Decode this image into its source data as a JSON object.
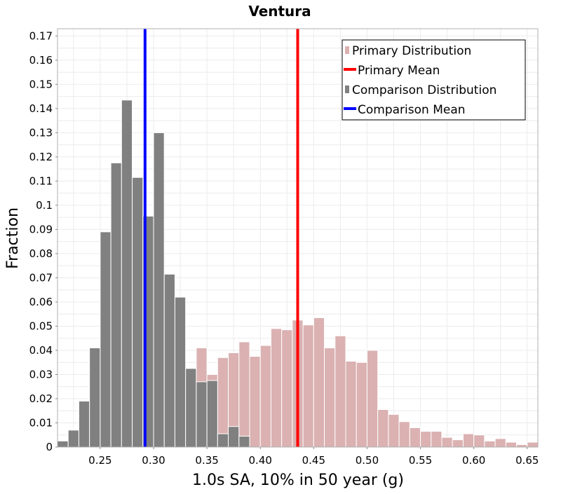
{
  "chart_data": {
    "type": "bar",
    "title": "Ventura",
    "xlabel": "1.0s SA, 10% in 50 year (g)",
    "ylabel": "Fraction",
    "xlim": [
      0.21,
      0.66
    ],
    "ylim": [
      0,
      0.173
    ],
    "bin_width": 0.01,
    "grid": true,
    "legend_position": "top-right",
    "x_ticks": [
      "0.25",
      "0.30",
      "0.35",
      "0.40",
      "0.45",
      "0.50",
      "0.55",
      "0.60",
      "0.65"
    ],
    "x_tick_values": [
      0.25,
      0.3,
      0.35,
      0.4,
      0.45,
      0.5,
      0.55,
      0.6,
      0.65
    ],
    "y_ticks": [
      "0",
      "0.01",
      "0.02",
      "0.03",
      "0.04",
      "0.05",
      "0.06",
      "0.07",
      "0.08",
      "0.09",
      "0.1",
      "0.11",
      "0.12",
      "0.13",
      "0.14",
      "0.15",
      "0.16",
      "0.17"
    ],
    "y_tick_values": [
      0,
      0.01,
      0.02,
      0.03,
      0.04,
      0.05,
      0.06,
      0.07,
      0.08,
      0.09,
      0.1,
      0.11,
      0.12,
      0.13,
      0.14,
      0.15,
      0.16,
      0.17
    ],
    "series": [
      {
        "name": "Primary Distribution",
        "kind": "histogram",
        "color": "#dbb1b1",
        "x": [
          0.345,
          0.355,
          0.365,
          0.375,
          0.385,
          0.395,
          0.405,
          0.415,
          0.425,
          0.435,
          0.445,
          0.455,
          0.465,
          0.475,
          0.485,
          0.495,
          0.505,
          0.515,
          0.525,
          0.535,
          0.545,
          0.555,
          0.565,
          0.575,
          0.585,
          0.595,
          0.605,
          0.615,
          0.625,
          0.635,
          0.645,
          0.655
        ],
        "values": [
          0.041,
          0.03,
          0.037,
          0.039,
          0.0435,
          0.0375,
          0.042,
          0.049,
          0.0485,
          0.0525,
          0.0505,
          0.0535,
          0.041,
          0.046,
          0.0355,
          0.035,
          0.04,
          0.0155,
          0.0135,
          0.0105,
          0.008,
          0.0065,
          0.0065,
          0.004,
          0.003,
          0.0055,
          0.005,
          0.0025,
          0.0035,
          0.002,
          0.001,
          0.002
        ]
      },
      {
        "name": "Comparison Distribution",
        "kind": "histogram",
        "color": "#808080",
        "x": [
          0.215,
          0.225,
          0.235,
          0.245,
          0.255,
          0.265,
          0.275,
          0.285,
          0.295,
          0.305,
          0.315,
          0.325,
          0.335,
          0.345,
          0.355,
          0.365,
          0.375,
          0.385
        ],
        "values": [
          0.0025,
          0.007,
          0.019,
          0.041,
          0.089,
          0.1175,
          0.1435,
          0.1115,
          0.0955,
          0.13,
          0.0715,
          0.062,
          0.0325,
          0.027,
          0.0275,
          0.0055,
          0.0085,
          0.0045
        ]
      },
      {
        "name": "Primary Mean",
        "kind": "vline",
        "color": "#ff0000",
        "x": 0.435
      },
      {
        "name": "Comparison Mean",
        "kind": "vline",
        "color": "#0000ff",
        "x": 0.292
      }
    ]
  }
}
